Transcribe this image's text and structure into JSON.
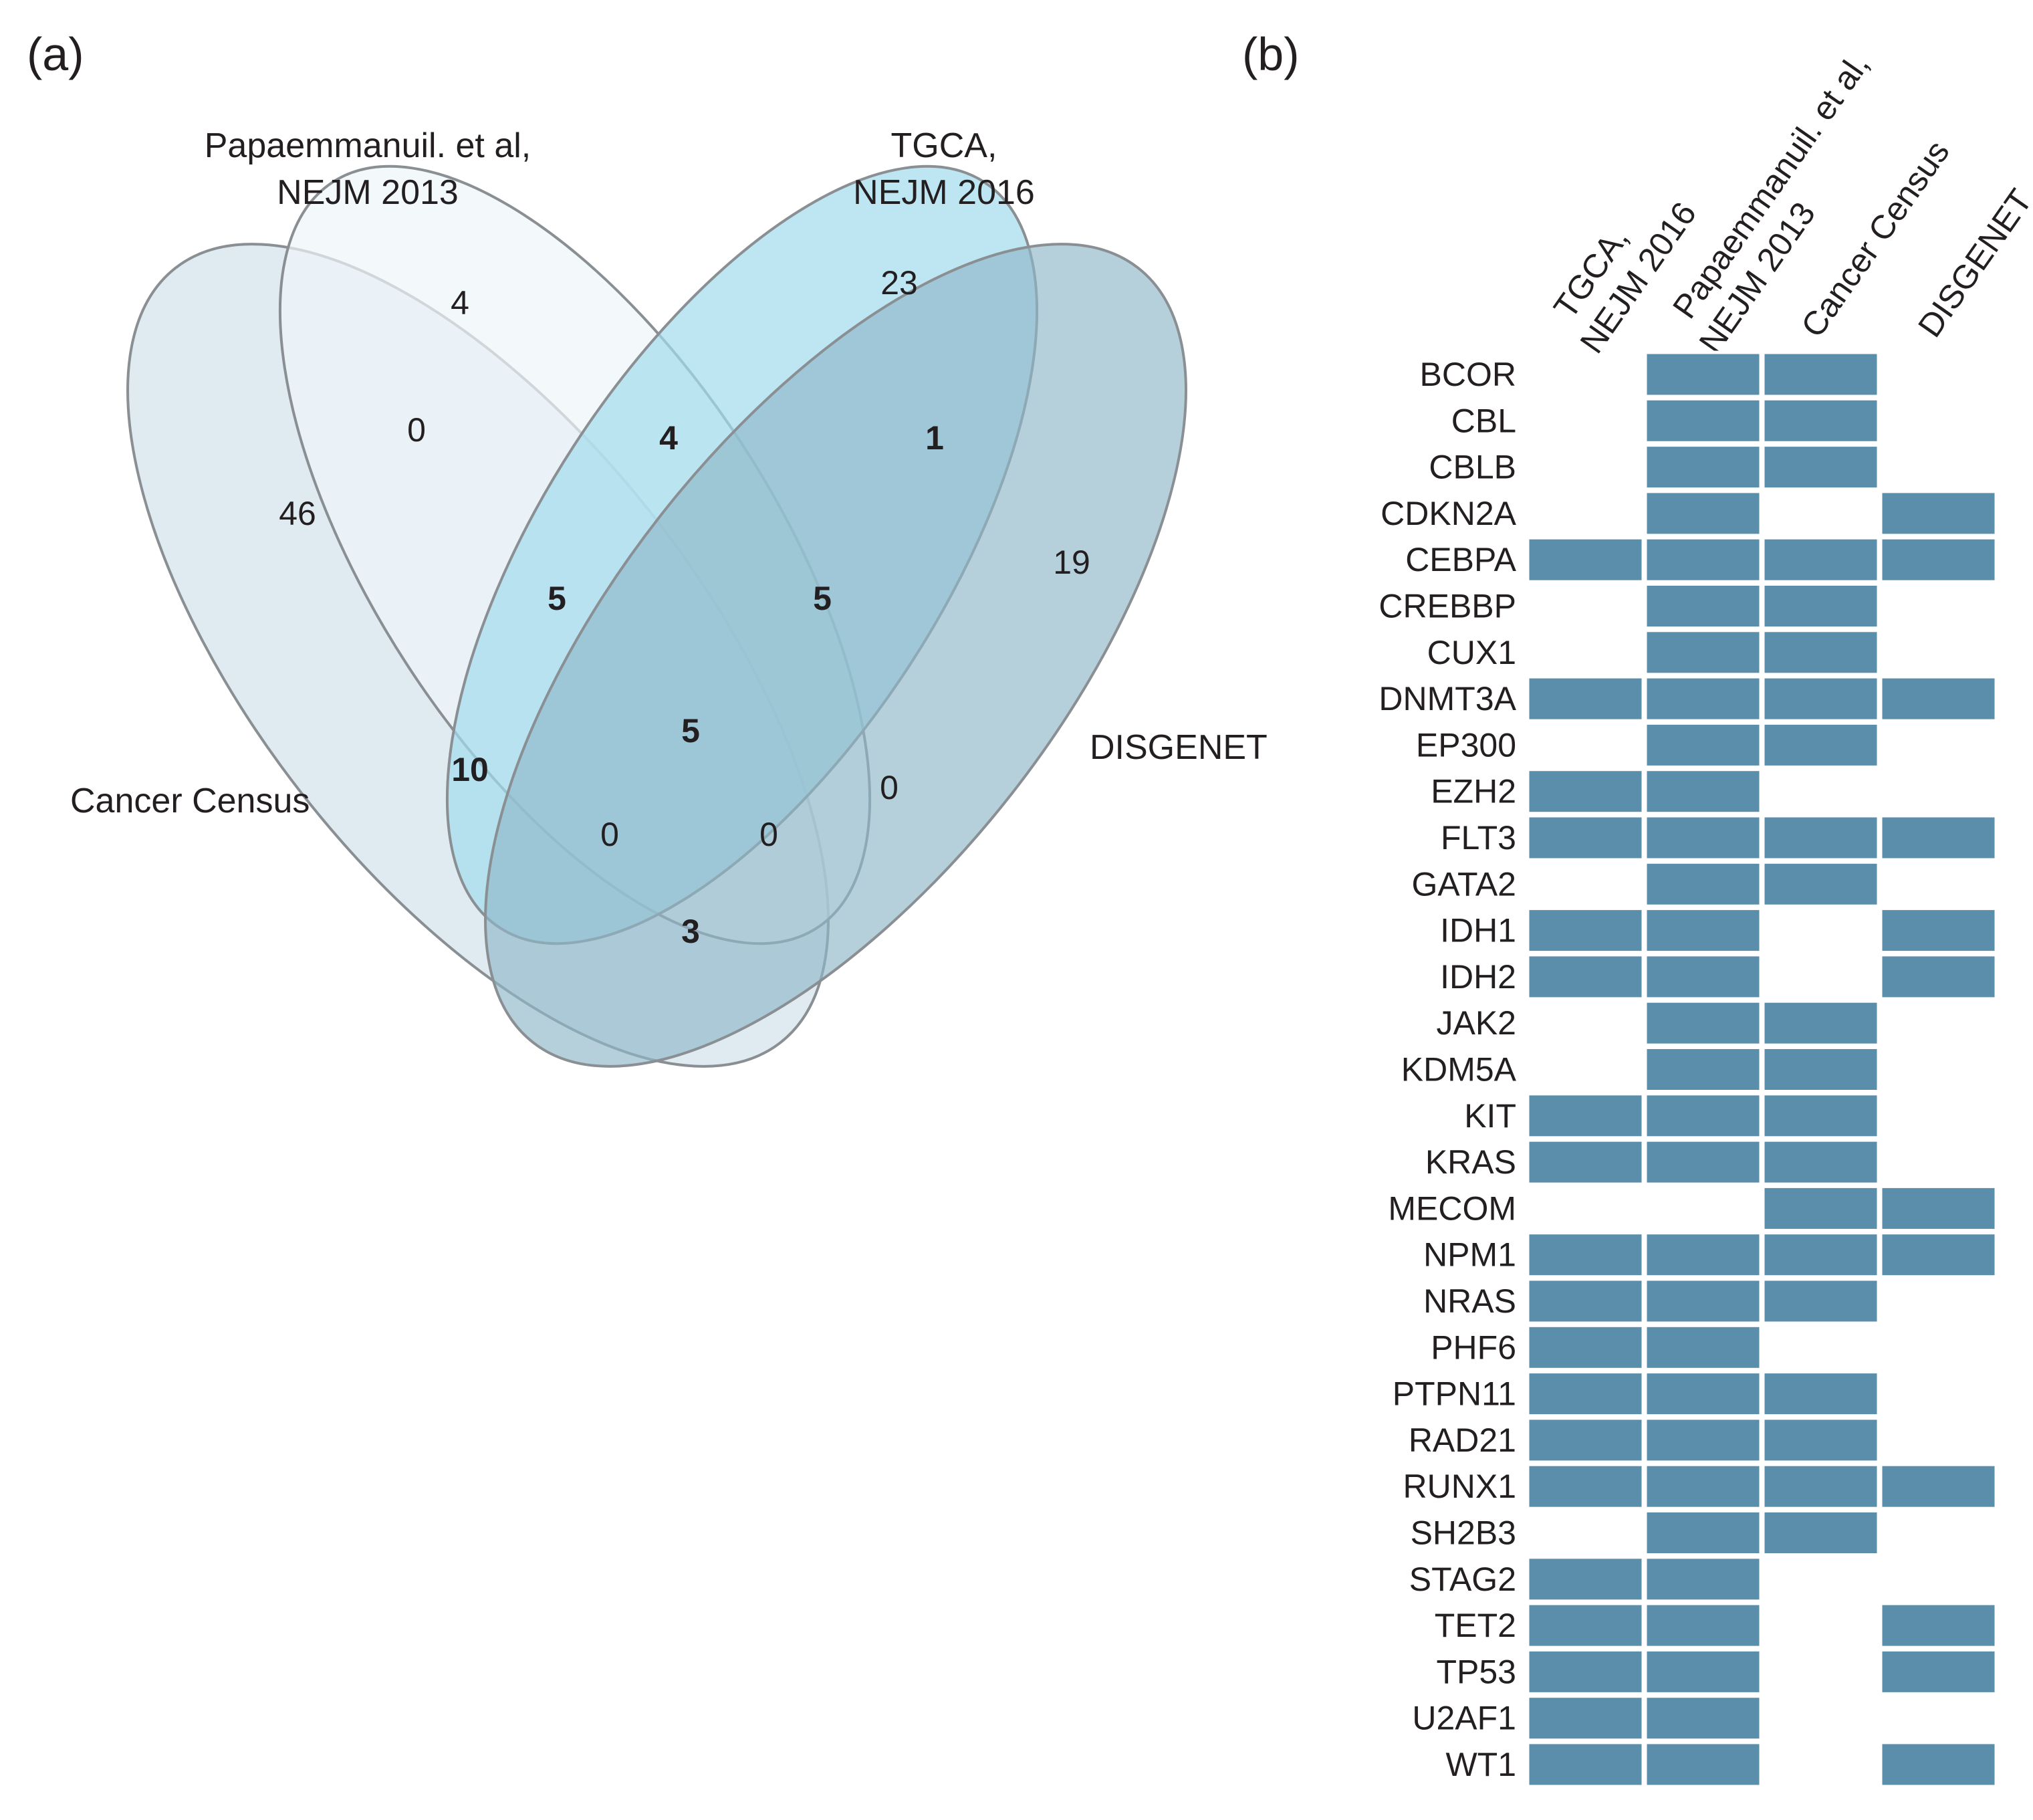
{
  "panel_a": {
    "label": "(a)",
    "sets": {
      "cancer_census": "Cancer Census",
      "papaemmanuil": [
        "Papaemmanuil. et al,",
        "NEJM 2013"
      ],
      "tgca": [
        "TGCA,",
        "NEJM 2016"
      ],
      "disgenet": "DISGENET"
    },
    "regions": {
      "cc_only": "46",
      "pap_only": "4",
      "tgca_only": "23",
      "dis_only": "19",
      "cc_pap": "0",
      "pap_tgca": "4",
      "tgca_dis": "1",
      "cc_dis": "3",
      "cc_tgca": "10",
      "pap_dis": "0",
      "cc_pap_tgca": "5",
      "pap_tgca_dis": "5",
      "cc_tgca_dis": "0",
      "cc_pap_dis": "0",
      "all_four": "5"
    },
    "colors": {
      "cancer_census": "#d6e4ec",
      "papaemmanuil": "#eef5fa",
      "tgca": "#a3dbec",
      "disgenet": "#8fb7c8"
    }
  },
  "panel_b": {
    "label": "(b)",
    "columns": [
      [
        "TGCA,",
        "NEJM 2016"
      ],
      [
        "Papaemmanuil. et al,",
        "NEJM 2013"
      ],
      [
        "Cancer Census"
      ],
      [
        "DISGENET"
      ]
    ],
    "cell_color": "#5b8eab",
    "genes": [
      "BCOR",
      "CBL",
      "CBLB",
      "CDKN2A",
      "CEBPA",
      "CREBBP",
      "CUX1",
      "DNMT3A",
      "EP300",
      "EZH2",
      "FLT3",
      "GATA2",
      "IDH1",
      "IDH2",
      "JAK2",
      "KDM5A",
      "KIT",
      "KRAS",
      "MECOM",
      "NPM1",
      "NRAS",
      "PHF6",
      "PTPN11",
      "RAD21",
      "RUNX1",
      "SH2B3",
      "STAG2",
      "TET2",
      "TP53",
      "U2AF1",
      "WT1"
    ],
    "matrix": [
      [
        0,
        1,
        1,
        0
      ],
      [
        0,
        1,
        1,
        0
      ],
      [
        0,
        1,
        1,
        0
      ],
      [
        0,
        1,
        0,
        1
      ],
      [
        1,
        1,
        1,
        1
      ],
      [
        0,
        1,
        1,
        0
      ],
      [
        0,
        1,
        1,
        0
      ],
      [
        1,
        1,
        1,
        1
      ],
      [
        0,
        1,
        1,
        0
      ],
      [
        1,
        1,
        0,
        0
      ],
      [
        1,
        1,
        1,
        1
      ],
      [
        0,
        1,
        1,
        0
      ],
      [
        1,
        1,
        0,
        1
      ],
      [
        1,
        1,
        0,
        1
      ],
      [
        0,
        1,
        1,
        0
      ],
      [
        0,
        1,
        1,
        0
      ],
      [
        1,
        1,
        1,
        0
      ],
      [
        1,
        1,
        1,
        0
      ],
      [
        0,
        0,
        1,
        1
      ],
      [
        1,
        1,
        1,
        1
      ],
      [
        1,
        1,
        1,
        0
      ],
      [
        1,
        1,
        0,
        0
      ],
      [
        1,
        1,
        1,
        0
      ],
      [
        1,
        1,
        1,
        0
      ],
      [
        1,
        1,
        1,
        1
      ],
      [
        0,
        1,
        1,
        0
      ],
      [
        1,
        1,
        0,
        0
      ],
      [
        1,
        1,
        0,
        1
      ],
      [
        1,
        1,
        0,
        1
      ],
      [
        1,
        1,
        0,
        0
      ],
      [
        1,
        1,
        0,
        1
      ]
    ]
  }
}
